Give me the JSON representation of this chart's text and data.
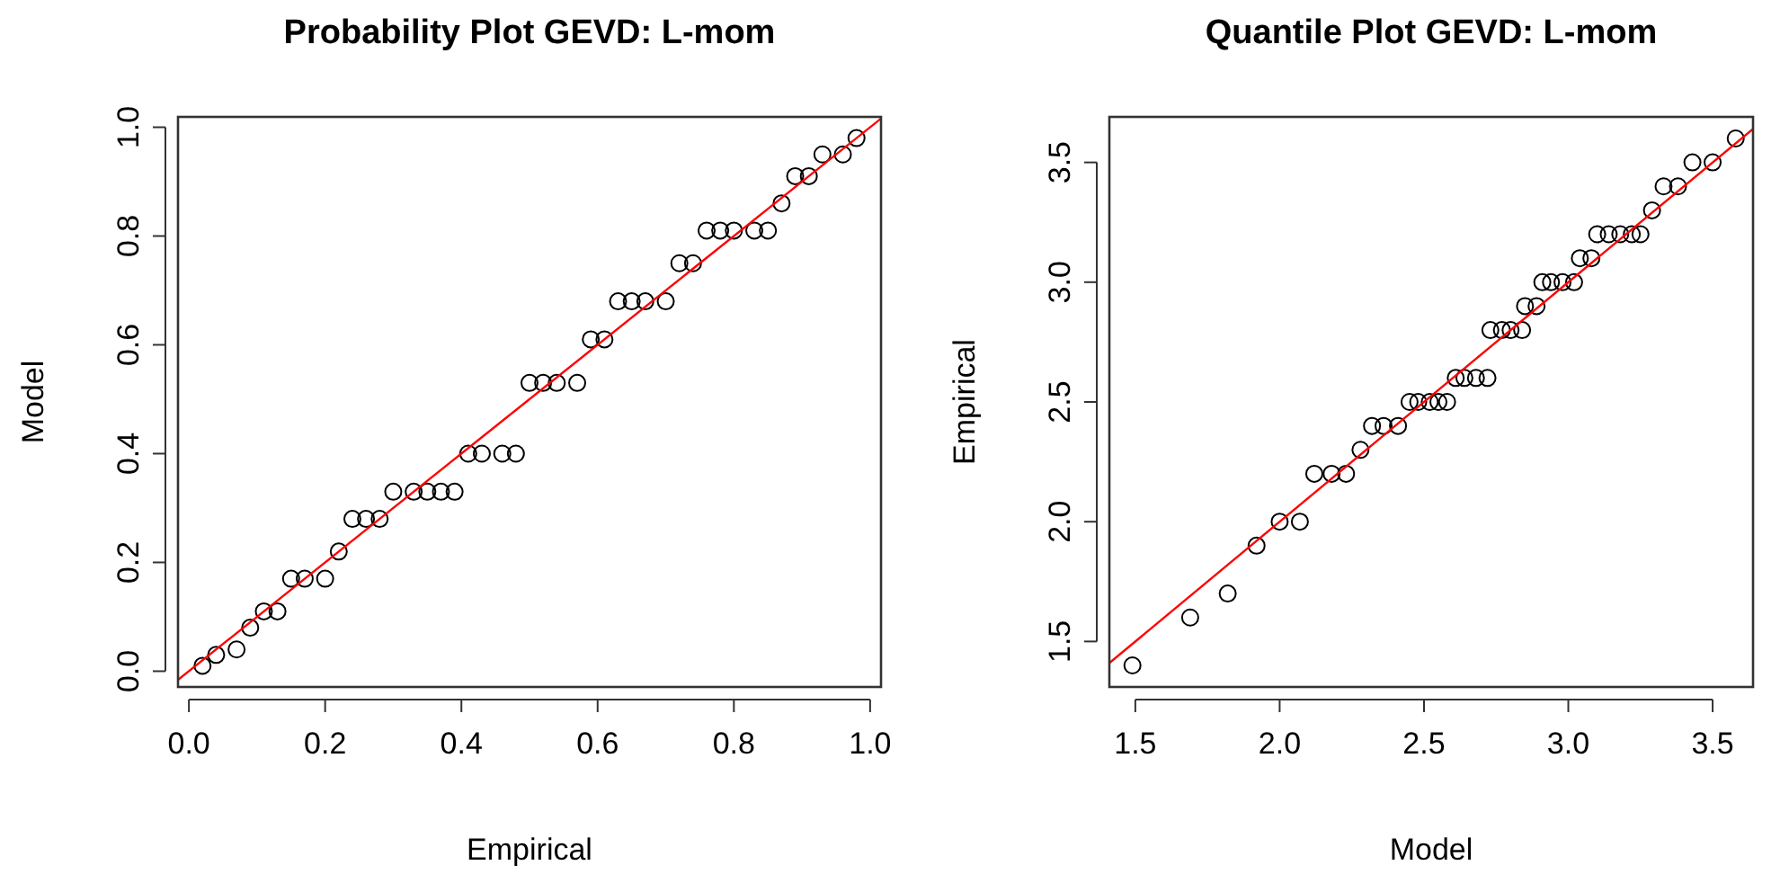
{
  "chart_data": [
    {
      "type": "scatter",
      "title": "Probability Plot GEVD: L-mom",
      "xlabel": "Empirical",
      "ylabel": "Model",
      "xlim": [
        -0.016,
        1.016
      ],
      "ylim": [
        -0.029,
        1.019
      ],
      "xticks": [
        {
          "value": 0,
          "label": "0.0"
        },
        {
          "value": 0.2,
          "label": "0.2"
        },
        {
          "value": 0.4,
          "label": "0.4"
        },
        {
          "value": 0.6,
          "label": "0.6"
        },
        {
          "value": 0.8,
          "label": "0.8"
        },
        {
          "value": 1,
          "label": "1.0"
        }
      ],
      "yticks": [
        {
          "value": 0,
          "label": "0.0"
        },
        {
          "value": 0.2,
          "label": "0.2"
        },
        {
          "value": 0.4,
          "label": "0.4"
        },
        {
          "value": 0.6,
          "label": "0.6"
        },
        {
          "value": 0.8,
          "label": "0.8"
        },
        {
          "value": 1,
          "label": "1.0"
        }
      ],
      "series": [
        {
          "marker": "circle",
          "color": "#000000",
          "x": [
            0.02,
            0.04,
            0.07,
            0.09,
            0.11,
            0.13,
            0.15,
            0.17,
            0.2,
            0.22,
            0.24,
            0.26,
            0.28,
            0.3,
            0.33,
            0.35,
            0.37,
            0.39,
            0.41,
            0.43,
            0.46,
            0.48,
            0.5,
            0.52,
            0.54,
            0.57,
            0.59,
            0.61,
            0.63,
            0.65,
            0.67,
            0.7,
            0.72,
            0.74,
            0.76,
            0.78,
            0.8,
            0.83,
            0.85,
            0.87,
            0.89,
            0.91,
            0.93,
            0.96,
            0.98
          ],
          "values": [
            0.01,
            0.03,
            0.04,
            0.08,
            0.11,
            0.11,
            0.17,
            0.17,
            0.17,
            0.22,
            0.28,
            0.28,
            0.28,
            0.33,
            0.33,
            0.33,
            0.33,
            0.33,
            0.4,
            0.4,
            0.4,
            0.4,
            0.53,
            0.53,
            0.53,
            0.53,
            0.61,
            0.61,
            0.68,
            0.68,
            0.68,
            0.68,
            0.75,
            0.75,
            0.81,
            0.81,
            0.81,
            0.81,
            0.81,
            0.86,
            0.91,
            0.91,
            0.95,
            0.95,
            0.98
          ]
        },
        {
          "type": "line",
          "marker": "none",
          "color": "#ff0000",
          "x": [
            -0.016,
            1.016
          ],
          "values": [
            -0.016,
            1.016
          ]
        }
      ]
    },
    {
      "type": "scatter",
      "title": "Quantile Plot GEVD: L-mom",
      "xlabel": "Model",
      "ylabel": "Empirical",
      "xlim": [
        1.41,
        3.64
      ],
      "ylim": [
        1.31,
        3.69
      ],
      "xticks": [
        1.5,
        {
          "value": 2,
          "label": "2.0"
        },
        2.5,
        {
          "value": 3,
          "label": "3.0"
        },
        3.5
      ],
      "yticks": [
        1.5,
        {
          "value": 2,
          "label": "2.0"
        },
        2.5,
        {
          "value": 3,
          "label": "3.0"
        },
        3.5
      ],
      "series": [
        {
          "marker": "circle",
          "color": "#000000",
          "x": [
            1.49,
            1.69,
            1.82,
            1.92,
            2.0,
            2.07,
            2.12,
            2.18,
            2.23,
            2.28,
            2.32,
            2.36,
            2.41,
            2.45,
            2.48,
            2.52,
            2.55,
            2.58,
            2.61,
            2.64,
            2.68,
            2.72,
            2.73,
            2.77,
            2.8,
            2.84,
            2.85,
            2.89,
            2.91,
            2.94,
            2.98,
            3.02,
            3.04,
            3.08,
            3.1,
            3.14,
            3.18,
            3.22,
            3.25,
            3.29,
            3.33,
            3.38,
            3.43,
            3.5,
            3.58
          ],
          "values": [
            1.4,
            1.6,
            1.7,
            1.9,
            2.0,
            2.0,
            2.2,
            2.2,
            2.2,
            2.3,
            2.4,
            2.4,
            2.4,
            2.5,
            2.5,
            2.5,
            2.5,
            2.5,
            2.6,
            2.6,
            2.6,
            2.6,
            2.8,
            2.8,
            2.8,
            2.8,
            2.9,
            2.9,
            3.0,
            3.0,
            3.0,
            3.0,
            3.1,
            3.1,
            3.2,
            3.2,
            3.2,
            3.2,
            3.2,
            3.3,
            3.4,
            3.4,
            3.5,
            3.5,
            3.6
          ]
        },
        {
          "type": "line",
          "marker": "none",
          "color": "#ff0000",
          "x": [
            1.41,
            3.64
          ],
          "values": [
            1.41,
            3.64
          ]
        }
      ]
    }
  ]
}
